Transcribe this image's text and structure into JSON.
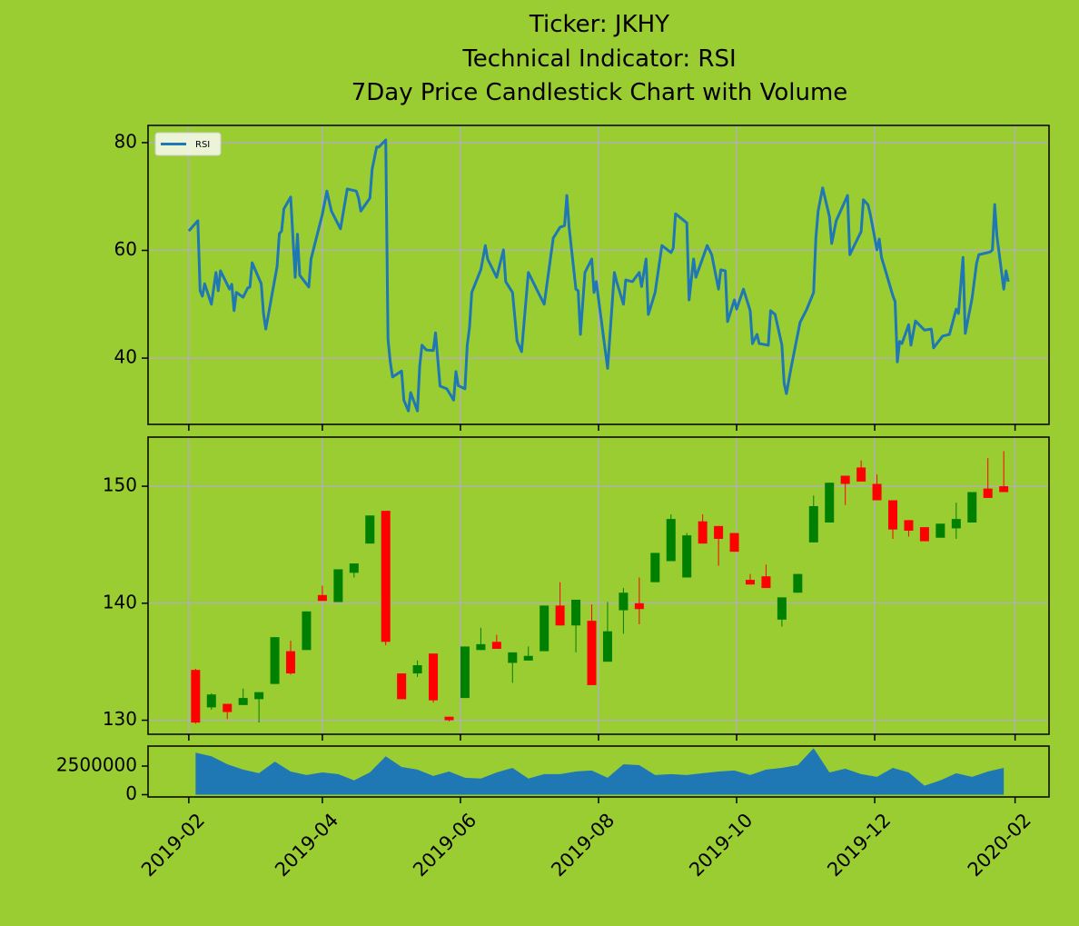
{
  "chart_data": [
    {
      "type": "line",
      "title": [
        "Ticker: JKHY",
        "Technical Indicator: RSI",
        "7Day Price Candlestick Chart with Volume"
      ],
      "legend": "upper left",
      "grid": true,
      "ylim": [
        27.7,
        83.2
      ],
      "yticks": [
        40,
        60,
        80
      ],
      "x": [
        "2019-02-01",
        "2019-02-05",
        "2019-02-06",
        "2019-02-07",
        "2019-02-08",
        "2019-02-11",
        "2019-02-13",
        "2019-02-14",
        "2019-02-15",
        "2019-02-19",
        "2019-02-20",
        "2019-02-21",
        "2019-02-22",
        "2019-02-25",
        "2019-02-27",
        "2019-02-28",
        "2019-03-01",
        "2019-03-05",
        "2019-03-06",
        "2019-03-07",
        "2019-03-12",
        "2019-03-13",
        "2019-03-14",
        "2019-03-15",
        "2019-03-18",
        "2019-03-20",
        "2019-03-21",
        "2019-03-22",
        "2019-03-26",
        "2019-03-27",
        "2019-04-01",
        "2019-04-03",
        "2019-04-05",
        "2019-04-09",
        "2019-04-12",
        "2019-04-16",
        "2019-04-17",
        "2019-04-18",
        "2019-04-22",
        "2019-04-23",
        "2019-04-25",
        "2019-04-26",
        "2019-04-29",
        "2019-04-30",
        "2019-05-01",
        "2019-05-02",
        "2019-05-06",
        "2019-05-07",
        "2019-05-09",
        "2019-05-10",
        "2019-05-13",
        "2019-05-14",
        "2019-05-15",
        "2019-05-17",
        "2019-05-20",
        "2019-05-21",
        "2019-05-23",
        "2019-05-26",
        "2019-05-29",
        "2019-05-30",
        "2019-05-31",
        "2019-06-03",
        "2019-06-04",
        "2019-06-05",
        "2019-06-06",
        "2019-06-10",
        "2019-06-12",
        "2019-06-13",
        "2019-06-17",
        "2019-06-20",
        "2019-06-21",
        "2019-06-24",
        "2019-06-26",
        "2019-06-28",
        "2019-07-01",
        "2019-07-05",
        "2019-07-08",
        "2019-07-12",
        "2019-07-15",
        "2019-07-17",
        "2019-07-18",
        "2019-07-19",
        "2019-07-22",
        "2019-07-23",
        "2019-07-24",
        "2019-07-26",
        "2019-07-29",
        "2019-07-30",
        "2019-07-31",
        "2019-08-05",
        "2019-08-06",
        "2019-08-08",
        "2019-08-09",
        "2019-08-12",
        "2019-08-13",
        "2019-08-16",
        "2019-08-19",
        "2019-08-20",
        "2019-08-22",
        "2019-08-23",
        "2019-08-26",
        "2019-08-29",
        "2019-09-02",
        "2019-09-03",
        "2019-09-04",
        "2019-09-09",
        "2019-09-10",
        "2019-09-12",
        "2019-09-13",
        "2019-09-18",
        "2019-09-20",
        "2019-09-23",
        "2019-09-24",
        "2019-09-26",
        "2019-09-27",
        "2019-09-30",
        "2019-10-01",
        "2019-10-04",
        "2019-10-07",
        "2019-10-08",
        "2019-10-10",
        "2019-10-11",
        "2019-10-15",
        "2019-10-16",
        "2019-10-18",
        "2019-10-21",
        "2019-10-22",
        "2019-10-23",
        "2019-10-25",
        "2019-10-29",
        "2019-11-01",
        "2019-11-04",
        "2019-11-05",
        "2019-11-06",
        "2019-11-08",
        "2019-11-11",
        "2019-11-12",
        "2019-11-14",
        "2019-11-19",
        "2019-11-20",
        "2019-11-25",
        "2019-11-26",
        "2019-11-28",
        "2019-11-29",
        "2019-12-02",
        "2019-12-03",
        "2019-12-04",
        "2019-12-06",
        "2019-12-09",
        "2019-12-10",
        "2019-12-11",
        "2019-12-12",
        "2019-12-13",
        "2019-12-16",
        "2019-12-17",
        "2019-12-19",
        "2019-12-23",
        "2019-12-26",
        "2019-12-27",
        "2019-12-31",
        "2020-01-03",
        "2020-01-06",
        "2020-01-07",
        "2020-01-09",
        "2020-01-10",
        "2020-01-13",
        "2020-01-15",
        "2020-01-16",
        "2020-01-21",
        "2020-01-22",
        "2020-01-23",
        "2020-01-24",
        "2020-01-27",
        "2020-01-28",
        "2020-01-29"
      ],
      "series": [
        {
          "name": "RSI",
          "color": "#1f77b4",
          "values": [
            63.6,
            65.5,
            52.5,
            51.5,
            53.8,
            50,
            55.9,
            52.5,
            56.2,
            52.8,
            53.7,
            48.8,
            52.2,
            51.3,
            53,
            53.2,
            57.7,
            53.8,
            48.3,
            45.4,
            57,
            63.1,
            63.6,
            67.7,
            69.9,
            55,
            63,
            55.4,
            53.2,
            58.4,
            66.7,
            71,
            67.3,
            64,
            71.4,
            71,
            69.7,
            67.3,
            69.7,
            75.1,
            79.2,
            79.2,
            80.5,
            43.5,
            39.3,
            36.5,
            37.6,
            32.2,
            30.2,
            33.6,
            30.2,
            38.5,
            42.4,
            41.5,
            41.4,
            44.7,
            34.8,
            34.3,
            32.2,
            37.5,
            34.9,
            34.3,
            42.4,
            45.7,
            52.2,
            56.4,
            60.9,
            58.4,
            55,
            60.1,
            54.2,
            52.2,
            43.2,
            41.2,
            55.9,
            52.5,
            50,
            62.3,
            64.3,
            64.6,
            70.2,
            64.3,
            52.8,
            52.5,
            44.4,
            55.9,
            58.4,
            52.2,
            54.2,
            38.1,
            44,
            55.9,
            54.2,
            50,
            54.5,
            54.2,
            55.9,
            53.3,
            58.4,
            48.1,
            52.2,
            60.9,
            59.6,
            60.4,
            66.8,
            65.1,
            50.8,
            58.4,
            55,
            60.9,
            59.2,
            52.8,
            56.4,
            56.2,
            46.8,
            50.8,
            49.1,
            52.8,
            48.8,
            42.7,
            44.4,
            42.7,
            42.4,
            48.8,
            48.1,
            42.4,
            35.3,
            33.4,
            38.1,
            46.6,
            49.1,
            52.2,
            62.3,
            67.3,
            71.6,
            66.3,
            61.3,
            65.5,
            70.2,
            59.2,
            63.5,
            69.4,
            68.5,
            66.8,
            60.1,
            62.1,
            58.7,
            55.9,
            51.6,
            50.5,
            39.3,
            43.1,
            42.7,
            46.2,
            42.4,
            46.9,
            45.2,
            45.4,
            41.9,
            44.1,
            44.4,
            49.1,
            48.3,
            58.7,
            44.6,
            51.1,
            57.6,
            59.2,
            59.7,
            60.1,
            68.5,
            62.6,
            52.8,
            56.2,
            54.2
          ]
        }
      ]
    },
    {
      "type": "candlestick",
      "grid": true,
      "up_color": "green",
      "down_color": "red",
      "ylim": [
        128.8,
        154.2
      ],
      "yticks": [
        130,
        140,
        150
      ],
      "x": [
        "2019-02-04",
        "2019-02-11",
        "2019-02-18",
        "2019-02-25",
        "2019-03-04",
        "2019-03-11",
        "2019-03-18",
        "2019-03-25",
        "2019-04-01",
        "2019-04-08",
        "2019-04-15",
        "2019-04-22",
        "2019-04-29",
        "2019-05-06",
        "2019-05-13",
        "2019-05-20",
        "2019-05-27",
        "2019-06-03",
        "2019-06-10",
        "2019-06-17",
        "2019-06-24",
        "2019-07-01",
        "2019-07-08",
        "2019-07-15",
        "2019-07-22",
        "2019-07-29",
        "2019-08-05",
        "2019-08-12",
        "2019-08-19",
        "2019-08-26",
        "2019-09-02",
        "2019-09-09",
        "2019-09-16",
        "2019-09-23",
        "2019-09-30",
        "2019-10-07",
        "2019-10-14",
        "2019-10-21",
        "2019-10-28",
        "2019-11-04",
        "2019-11-11",
        "2019-11-18",
        "2019-11-25",
        "2019-12-02",
        "2019-12-09",
        "2019-12-16",
        "2019-12-23",
        "2019-12-30",
        "2020-01-06",
        "2020-01-13",
        "2020-01-20",
        "2020-01-27"
      ],
      "open": [
        134.3,
        131.1,
        131.4,
        131.3,
        131.8,
        133.1,
        135.9,
        136.0,
        140.7,
        140.1,
        142.6,
        145.1,
        147.9,
        134.0,
        134.0,
        135.7,
        130.3,
        131.9,
        136.0,
        136.7,
        134.9,
        135.1,
        135.9,
        139.8,
        138.1,
        138.5,
        135.0,
        139.4,
        140.0,
        141.8,
        143.6,
        142.2,
        147.0,
        146.6,
        146.0,
        142.0,
        142.3,
        138.6,
        140.9,
        145.2,
        146.9,
        150.9,
        151.6,
        150.2,
        148.8,
        147.1,
        146.5,
        145.6,
        146.4,
        146.9,
        149.8,
        150.0
      ],
      "high": [
        134.4,
        132.3,
        131.4,
        132.7,
        132.4,
        137.1,
        136.8,
        139.3,
        141.5,
        142.9,
        143.4,
        147.5,
        147.9,
        134.0,
        135.1,
        135.7,
        130.3,
        136.3,
        137.9,
        137.3,
        135.8,
        136.3,
        139.8,
        141.8,
        140.3,
        139.9,
        140.1,
        141.3,
        142.2,
        144.3,
        147.6,
        146.0,
        147.6,
        146.6,
        146.0,
        142.5,
        143.3,
        140.5,
        142.5,
        149.2,
        150.3,
        150.9,
        152.2,
        151.0,
        148.8,
        147.1,
        146.5,
        146.8,
        148.6,
        149.5,
        152.4,
        153.0
      ],
      "low": [
        129.7,
        130.9,
        130.1,
        131.3,
        129.8,
        133.1,
        133.9,
        136.0,
        140.2,
        140.1,
        142.2,
        145.1,
        136.4,
        131.8,
        133.7,
        131.5,
        129.9,
        131.9,
        136.0,
        136.1,
        133.2,
        135.1,
        135.9,
        138.1,
        135.8,
        133.0,
        135.0,
        137.4,
        138.2,
        141.8,
        143.6,
        142.2,
        145.1,
        143.2,
        144.4,
        141.6,
        141.3,
        138.0,
        140.9,
        145.2,
        146.9,
        148.4,
        150.4,
        148.8,
        145.5,
        145.7,
        145.3,
        145.6,
        145.5,
        146.9,
        149.0,
        149.5
      ],
      "close": [
        129.8,
        132.2,
        130.7,
        131.9,
        132.4,
        137.1,
        134.0,
        139.3,
        140.2,
        142.9,
        143.4,
        147.5,
        136.7,
        131.8,
        134.7,
        131.7,
        130.0,
        136.3,
        136.5,
        136.1,
        135.8,
        135.5,
        139.8,
        138.1,
        140.3,
        133.0,
        137.6,
        140.9,
        139.5,
        144.3,
        147.2,
        145.8,
        145.1,
        145.5,
        144.4,
        141.6,
        141.3,
        140.5,
        142.5,
        148.3,
        150.3,
        150.2,
        150.4,
        148.8,
        146.3,
        146.2,
        145.3,
        146.8,
        147.2,
        149.5,
        149.0,
        149.5
      ]
    },
    {
      "type": "area",
      "color": "#1f77b4",
      "ylim": [
        -200000,
        4250000
      ],
      "yticks": [
        0,
        2500000
      ],
      "xlim": [
        "2019-01-14",
        "2020-02-16"
      ],
      "xticks": [
        "2019-02",
        "2019-04",
        "2019-06",
        "2019-08",
        "2019-10",
        "2019-12",
        "2020-02"
      ],
      "x": [
        "2019-02-04",
        "2019-02-11",
        "2019-02-18",
        "2019-02-25",
        "2019-03-04",
        "2019-03-11",
        "2019-03-18",
        "2019-03-25",
        "2019-04-01",
        "2019-04-08",
        "2019-04-15",
        "2019-04-22",
        "2019-04-29",
        "2019-05-06",
        "2019-05-13",
        "2019-05-20",
        "2019-05-27",
        "2019-06-03",
        "2019-06-10",
        "2019-06-17",
        "2019-06-24",
        "2019-07-01",
        "2019-07-08",
        "2019-07-15",
        "2019-07-22",
        "2019-07-29",
        "2019-08-05",
        "2019-08-12",
        "2019-08-19",
        "2019-08-26",
        "2019-09-02",
        "2019-09-09",
        "2019-09-16",
        "2019-09-23",
        "2019-09-30",
        "2019-10-07",
        "2019-10-14",
        "2019-10-21",
        "2019-10-28",
        "2019-11-04",
        "2019-11-11",
        "2019-11-18",
        "2019-11-25",
        "2019-12-02",
        "2019-12-09",
        "2019-12-16",
        "2019-12-23",
        "2019-12-30",
        "2020-01-06",
        "2020-01-13",
        "2020-01-20",
        "2020-01-27"
      ],
      "values": [
        3670000,
        3360000,
        2660000,
        2190000,
        1880000,
        2890000,
        2030000,
        1720000,
        1950000,
        1800000,
        1250000,
        1950000,
        3360000,
        2420000,
        2190000,
        1640000,
        2030000,
        1480000,
        1410000,
        1950000,
        2340000,
        1410000,
        1800000,
        1800000,
        2030000,
        2110000,
        1480000,
        2660000,
        2580000,
        1720000,
        1800000,
        1720000,
        1880000,
        2030000,
        2110000,
        1720000,
        2190000,
        2340000,
        2580000,
        4060000,
        1950000,
        2270000,
        1800000,
        1560000,
        2340000,
        1950000,
        780000,
        1250000,
        1880000,
        1560000,
        2030000,
        2340000
      ]
    }
  ]
}
